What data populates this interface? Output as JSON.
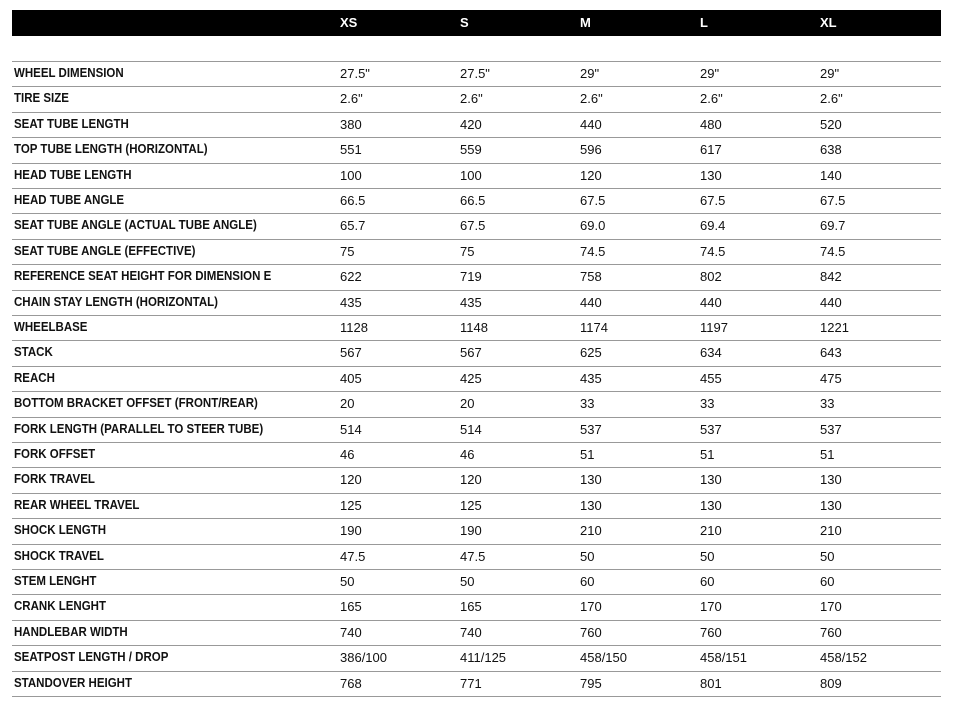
{
  "table": {
    "header": [
      "XS",
      "S",
      "M",
      "L",
      "XL"
    ],
    "rows": [
      [
        "WHEEL DIMENSION",
        "27.5\"",
        "27.5\"",
        "29\"",
        "29\"",
        "29\""
      ],
      [
        "TIRE SIZE",
        "2.6\"",
        "2.6\"",
        "2.6\"",
        "2.6\"",
        "2.6\""
      ],
      [
        "SEAT TUBE LENGTH",
        "380",
        "420",
        "440",
        "480",
        "520"
      ],
      [
        "TOP TUBE LENGTH (HORIZONTAL)",
        "551",
        "559",
        "596",
        "617",
        "638"
      ],
      [
        "HEAD TUBE LENGTH",
        "100",
        "100",
        "120",
        "130",
        "140"
      ],
      [
        "HEAD TUBE ANGLE",
        "66.5",
        "66.5",
        "67.5",
        "67.5",
        "67.5"
      ],
      [
        "SEAT TUBE ANGLE (ACTUAL TUBE ANGLE)",
        "65.7",
        "67.5",
        "69.0",
        "69.4",
        "69.7"
      ],
      [
        "SEAT TUBE ANGLE (EFFECTIVE)",
        "75",
        "75",
        "74.5",
        "74.5",
        "74.5"
      ],
      [
        "REFERENCE SEAT HEIGHT FOR DIMENSION E",
        "622",
        "719",
        "758",
        "802",
        "842"
      ],
      [
        "CHAIN STAY LENGTH (HORIZONTAL)",
        "435",
        "435",
        "440",
        "440",
        "440"
      ],
      [
        "WHEELBASE",
        "1128",
        "1148",
        "1174",
        "1197",
        "1221"
      ],
      [
        "STACK",
        "567",
        "567",
        "625",
        "634",
        "643"
      ],
      [
        "REACH",
        "405",
        "425",
        "435",
        "455",
        "475"
      ],
      [
        "BOTTOM BRACKET OFFSET (FRONT/REAR)",
        "20",
        "20",
        "33",
        "33",
        "33"
      ],
      [
        "FORK LENGTH (PARALLEL TO STEER TUBE)",
        "514",
        "514",
        "537",
        "537",
        "537"
      ],
      [
        "FORK OFFSET",
        "46",
        "46",
        "51",
        "51",
        "51"
      ],
      [
        "FORK TRAVEL",
        "120",
        "120",
        "130",
        "130",
        "130"
      ],
      [
        "REAR WHEEL TRAVEL",
        "125",
        "125",
        "130",
        "130",
        "130"
      ],
      [
        "SHOCK LENGTH",
        "190",
        "190",
        "210",
        "210",
        "210"
      ],
      [
        "SHOCK TRAVEL",
        "47.5",
        "47.5",
        "50",
        "50",
        "50"
      ],
      [
        "STEM LENGHT",
        "50",
        "50",
        "60",
        "60",
        "60"
      ],
      [
        "CRANK LENGHT",
        "165",
        "165",
        "170",
        "170",
        "170"
      ],
      [
        "HANDLEBAR WIDTH",
        "740",
        "740",
        "760",
        "760",
        "760"
      ],
      [
        "SEATPOST LENGTH / DROP",
        "386/100",
        "411/125",
        "458/150",
        "458/151",
        "458/152"
      ],
      [
        "STANDOVER HEIGHT",
        "768",
        "771",
        "795",
        "801",
        "809"
      ]
    ]
  }
}
